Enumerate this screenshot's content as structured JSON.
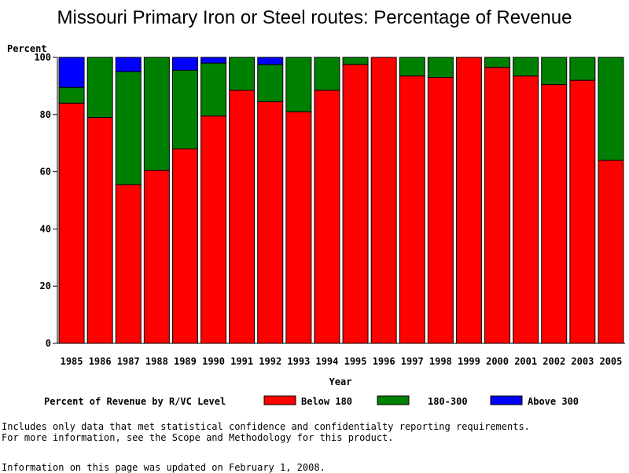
{
  "chart_data": {
    "type": "bar",
    "stacked": true,
    "title": "Missouri Primary Iron or Steel routes: Percentage of Revenue",
    "xlabel": "Year",
    "ylabel": "Percent",
    "ylim": [
      0,
      100
    ],
    "yticks": [
      "0",
      "20",
      "40",
      "60",
      "80",
      "100"
    ],
    "categories": [
      "1985",
      "1986",
      "1987",
      "1988",
      "1989",
      "1990",
      "1991",
      "1992",
      "1993",
      "1994",
      "1995",
      "1996",
      "1997",
      "1998",
      "1999",
      "2000",
      "2001",
      "2002",
      "2003",
      "2005"
    ],
    "legend_title": "Percent of Revenue by R/VC Level",
    "series": [
      {
        "name": "Below 180",
        "color": "#ff0000",
        "values": [
          84,
          79,
          55.5,
          60.5,
          68,
          79.5,
          88.5,
          84.5,
          81,
          88.5,
          97.5,
          100,
          93.5,
          93,
          100,
          96.5,
          93.5,
          90.5,
          92,
          64
        ]
      },
      {
        "name": "180-300",
        "color": "#008000",
        "values": [
          5.5,
          21,
          39.5,
          39.5,
          27.5,
          18.5,
          11.5,
          13,
          19,
          11.5,
          2.5,
          0,
          6.5,
          7,
          0,
          3.5,
          6.5,
          9.5,
          8,
          36
        ]
      },
      {
        "name": "Above 300",
        "color": "#0000ff",
        "values": [
          10.5,
          0,
          5,
          0,
          4.5,
          2,
          0,
          2.5,
          0,
          0,
          0,
          0,
          0,
          0,
          0,
          0,
          0,
          0,
          0,
          0
        ]
      }
    ]
  },
  "notes": {
    "line1": "Includes only data that met statistical confidence and confidentialty reporting requirements.",
    "line2": "For more information, see the Scope and Methodology for this product.",
    "updated": "Information on this page was updated on February 1, 2008."
  }
}
